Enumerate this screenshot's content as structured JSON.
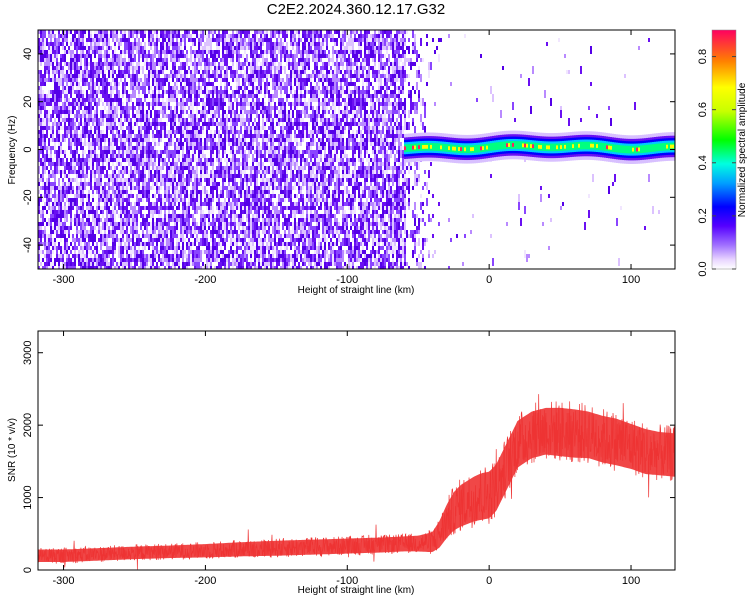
{
  "figure_title": "C2E2.2024.360.12.17.G32",
  "chart_data": [
    {
      "type": "heatmap",
      "xlabel": "Height of straight line (km)",
      "ylabel": "Frequency (Hz)",
      "xlim": [
        -318,
        131
      ],
      "ylim": [
        -50,
        50
      ],
      "xticks": [
        -300,
        -200,
        -100,
        0,
        100
      ],
      "xtick_labels": [
        "-300",
        "-200",
        "-100",
        "0",
        "100"
      ],
      "yticks": [
        -40,
        -20,
        0,
        20,
        40
      ],
      "ytick_labels": [
        "-40",
        "-20",
        "0",
        "20",
        "40"
      ],
      "colorbar": {
        "label": "Normalized spectral amplitude",
        "range": [
          0,
          0.9
        ],
        "ticks": [
          0.0,
          0.2,
          0.4,
          0.6,
          0.8
        ],
        "tick_labels": [
          "0.0",
          "0.2",
          "0.4",
          "0.6",
          "0.8"
        ]
      },
      "regions": [
        {
          "x_range": [
            -318,
            -60
          ],
          "frequency_range": [
            -50,
            50
          ],
          "amplitude": [
            0.0,
            0.15
          ],
          "pattern": "dense noise"
        },
        {
          "x_range": [
            -60,
            -35
          ],
          "frequency_range": [
            -50,
            50
          ],
          "amplitude": [
            0.0,
            0.08
          ],
          "pattern": "sparse noise"
        },
        {
          "x_range": [
            -60,
            131
          ],
          "frequency_range": [
            -3,
            5
          ],
          "amplitude": [
            0.3,
            0.9
          ],
          "pattern": "narrow signal band centred near 1 Hz"
        }
      ]
    },
    {
      "type": "line",
      "xlabel": "Height of straight line (km)",
      "ylabel": "SNR (10 * v/v)",
      "xlim": [
        -318,
        131
      ],
      "ylim": [
        0,
        3300
      ],
      "xticks": [
        -300,
        -200,
        -100,
        0,
        100
      ],
      "xtick_labels": [
        "-300",
        "-200",
        "-100",
        "0",
        "100"
      ],
      "yticks": [
        0,
        1000,
        2000,
        3000
      ],
      "ytick_labels": [
        "0",
        "1000",
        "2000",
        "3000"
      ],
      "color": "#ee3333",
      "x": [
        -318,
        -300,
        -275,
        -250,
        -225,
        -200,
        -175,
        -150,
        -125,
        -100,
        -75,
        -60,
        -50,
        -40,
        -35,
        -30,
        -25,
        -20,
        -15,
        -10,
        -5,
        0,
        5,
        10,
        15,
        20,
        30,
        40,
        50,
        60,
        70,
        80,
        90,
        100,
        110,
        120,
        131
      ],
      "values": [
        200,
        200,
        220,
        240,
        255,
        270,
        290,
        305,
        320,
        335,
        350,
        365,
        370,
        390,
        500,
        680,
        820,
        900,
        950,
        1000,
        1030,
        1050,
        1150,
        1350,
        1550,
        1750,
        1880,
        1930,
        1920,
        1900,
        1880,
        1820,
        1780,
        1720,
        1650,
        1620,
        1600
      ],
      "spread": [
        150,
        150,
        150,
        150,
        150,
        160,
        170,
        180,
        180,
        180,
        180,
        180,
        190,
        240,
        320,
        400,
        460,
        500,
        520,
        540,
        560,
        560,
        560,
        560,
        560,
        560,
        560,
        560,
        580,
        580,
        560,
        560,
        560,
        540,
        540,
        520,
        520
      ]
    }
  ]
}
